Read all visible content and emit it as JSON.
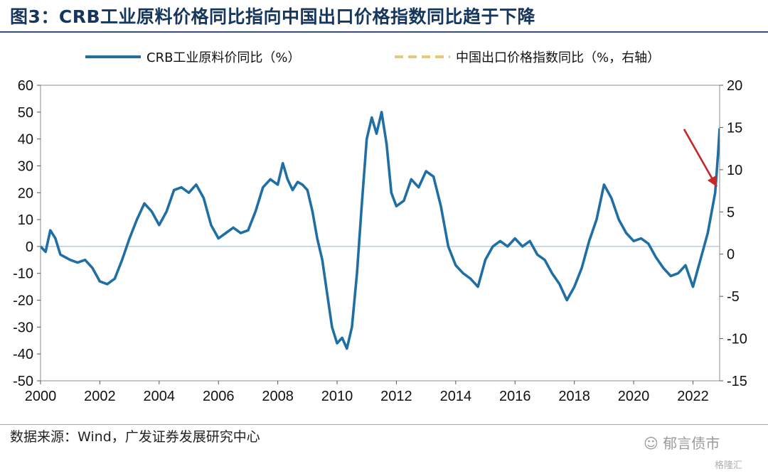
{
  "title": "图3：CRB工业原料价格同比指向中国出口价格指数同比趋于下降",
  "source": "数据来源：Wind，广发证券发展研究中心",
  "watermark": "郁言债市",
  "watermark2": "格隆汇",
  "colors": {
    "crb": "#1f6fa5",
    "export": "#e6c97a",
    "arrow": "#c62828",
    "title": "#16365c"
  },
  "chart_data": {
    "type": "line",
    "legend_placement": "top",
    "x_ticks": [
      "2000",
      "2002",
      "2004",
      "2006",
      "2008",
      "2010",
      "2012",
      "2014",
      "2016",
      "2018",
      "2020",
      "2022"
    ],
    "xlim": [
      2000,
      2022.9
    ],
    "y_left": {
      "ylim": [
        -50,
        60
      ],
      "ticks": [
        "60",
        "50",
        "40",
        "30",
        "20",
        "10",
        "0",
        "-10",
        "-20",
        "-30",
        "-40",
        "-50"
      ]
    },
    "y_right": {
      "ylim": [
        -15,
        20
      ],
      "ticks": [
        "20",
        "15",
        "10",
        "5",
        "0",
        "-5",
        "-10",
        "-15"
      ]
    },
    "annotation": {
      "type": "arrow",
      "from": [
        2021.7,
        14.8
      ],
      "to": [
        2022.8,
        8.0
      ],
      "axis": "right"
    },
    "series": [
      {
        "name": "CRB工业原料价同比（%）",
        "axis": "left",
        "style": "solid",
        "points": [
          [
            2000.0,
            0
          ],
          [
            2000.17,
            -2
          ],
          [
            2000.33,
            6
          ],
          [
            2000.5,
            3
          ],
          [
            2000.67,
            -3
          ],
          [
            2000.83,
            -4
          ],
          [
            2001.0,
            -5
          ],
          [
            2001.25,
            -6
          ],
          [
            2001.5,
            -5
          ],
          [
            2001.75,
            -8
          ],
          [
            2002.0,
            -13
          ],
          [
            2002.25,
            -14
          ],
          [
            2002.5,
            -12
          ],
          [
            2002.75,
            -5
          ],
          [
            2003.0,
            3
          ],
          [
            2003.25,
            10
          ],
          [
            2003.5,
            16
          ],
          [
            2003.75,
            13
          ],
          [
            2004.0,
            8
          ],
          [
            2004.25,
            13
          ],
          [
            2004.5,
            21
          ],
          [
            2004.75,
            22
          ],
          [
            2005.0,
            20
          ],
          [
            2005.25,
            23
          ],
          [
            2005.5,
            18
          ],
          [
            2005.75,
            8
          ],
          [
            2006.0,
            3
          ],
          [
            2006.25,
            5
          ],
          [
            2006.5,
            7
          ],
          [
            2006.75,
            5
          ],
          [
            2007.0,
            6
          ],
          [
            2007.25,
            13
          ],
          [
            2007.5,
            22
          ],
          [
            2007.75,
            25
          ],
          [
            2008.0,
            23
          ],
          [
            2008.17,
            31
          ],
          [
            2008.33,
            25
          ],
          [
            2008.5,
            21
          ],
          [
            2008.67,
            24
          ],
          [
            2008.83,
            23
          ],
          [
            2009.0,
            21
          ],
          [
            2009.17,
            13
          ],
          [
            2009.33,
            3
          ],
          [
            2009.5,
            -5
          ],
          [
            2009.67,
            -18
          ],
          [
            2009.83,
            -30
          ],
          [
            2010.0,
            -36
          ],
          [
            2010.17,
            -34
          ],
          [
            2010.33,
            -38
          ],
          [
            2010.5,
            -30
          ],
          [
            2010.67,
            -10
          ],
          [
            2010.83,
            15
          ],
          [
            2011.0,
            40
          ],
          [
            2011.17,
            48
          ],
          [
            2011.33,
            42
          ],
          [
            2011.5,
            50
          ],
          [
            2011.67,
            38
          ],
          [
            2011.83,
            20
          ],
          [
            2012.0,
            15
          ],
          [
            2012.25,
            17
          ],
          [
            2012.5,
            25
          ],
          [
            2012.75,
            22
          ],
          [
            2013.0,
            28
          ],
          [
            2013.25,
            26
          ],
          [
            2013.5,
            15
          ],
          [
            2013.75,
            0
          ],
          [
            2014.0,
            -7
          ],
          [
            2014.25,
            -10
          ],
          [
            2014.5,
            -12
          ],
          [
            2014.75,
            -15
          ],
          [
            2015.0,
            -5
          ],
          [
            2015.25,
            0
          ],
          [
            2015.5,
            2
          ],
          [
            2015.75,
            0
          ],
          [
            2016.0,
            3
          ],
          [
            2016.25,
            0
          ],
          [
            2016.5,
            2
          ],
          [
            2016.75,
            -3
          ],
          [
            2017.0,
            -5
          ],
          [
            2017.25,
            -10
          ],
          [
            2017.5,
            -14
          ],
          [
            2017.75,
            -20
          ],
          [
            2018.0,
            -15
          ],
          [
            2018.25,
            -8
          ],
          [
            2018.5,
            2
          ],
          [
            2018.75,
            10
          ],
          [
            2019.0,
            23
          ],
          [
            2019.25,
            18
          ],
          [
            2019.5,
            10
          ],
          [
            2019.75,
            5
          ],
          [
            2020.0,
            2
          ],
          [
            2020.25,
            3
          ],
          [
            2020.5,
            1
          ],
          [
            2020.75,
            -4
          ],
          [
            2021.0,
            -8
          ],
          [
            2021.25,
            -11
          ],
          [
            2021.5,
            -10
          ],
          [
            2021.75,
            -7
          ],
          [
            2022.0,
            -15
          ],
          [
            2022.25,
            -5
          ],
          [
            2022.5,
            5
          ],
          [
            2022.75,
            20
          ],
          [
            2022.85,
            35
          ],
          [
            2022.9,
            44
          ]
        ]
      },
      {
        "name": "中国出口价格指数同比（%，右轴）",
        "axis": "right",
        "style": "dashed",
        "points": []
      }
    ]
  }
}
